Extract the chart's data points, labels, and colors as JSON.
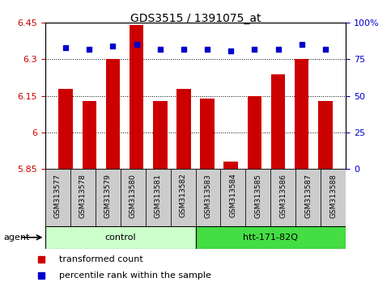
{
  "title": "GDS3515 / 1391075_at",
  "categories": [
    "GSM313577",
    "GSM313578",
    "GSM313579",
    "GSM313580",
    "GSM313581",
    "GSM313582",
    "GSM313583",
    "GSM313584",
    "GSM313585",
    "GSM313586",
    "GSM313587",
    "GSM313588"
  ],
  "bar_values": [
    6.18,
    6.13,
    6.3,
    6.44,
    6.13,
    6.18,
    6.14,
    5.88,
    6.15,
    6.24,
    6.3,
    6.13
  ],
  "percentile_values": [
    83,
    82,
    84,
    85,
    82,
    82,
    82,
    81,
    82,
    82,
    85,
    82
  ],
  "ylim_left": [
    5.85,
    6.45
  ],
  "ylim_right": [
    0,
    100
  ],
  "yticks_left": [
    5.85,
    6.0,
    6.15,
    6.3,
    6.45
  ],
  "yticks_right": [
    0,
    25,
    50,
    75,
    100
  ],
  "ytick_labels_left": [
    "5.85",
    "6",
    "6.15",
    "6.3",
    "6.45"
  ],
  "ytick_labels_right": [
    "0",
    "25",
    "50",
    "75",
    "100%"
  ],
  "bar_color": "#cc0000",
  "dot_color": "#0000cc",
  "groups": [
    {
      "label": "control",
      "start": 0,
      "end": 5,
      "color": "#ccffcc"
    },
    {
      "label": "htt-171-82Q",
      "start": 6,
      "end": 11,
      "color": "#44dd44"
    }
  ],
  "agent_label": "agent",
  "legend_bar_label": "transformed count",
  "legend_dot_label": "percentile rank within the sample",
  "tick_area_bg": "#cccccc"
}
